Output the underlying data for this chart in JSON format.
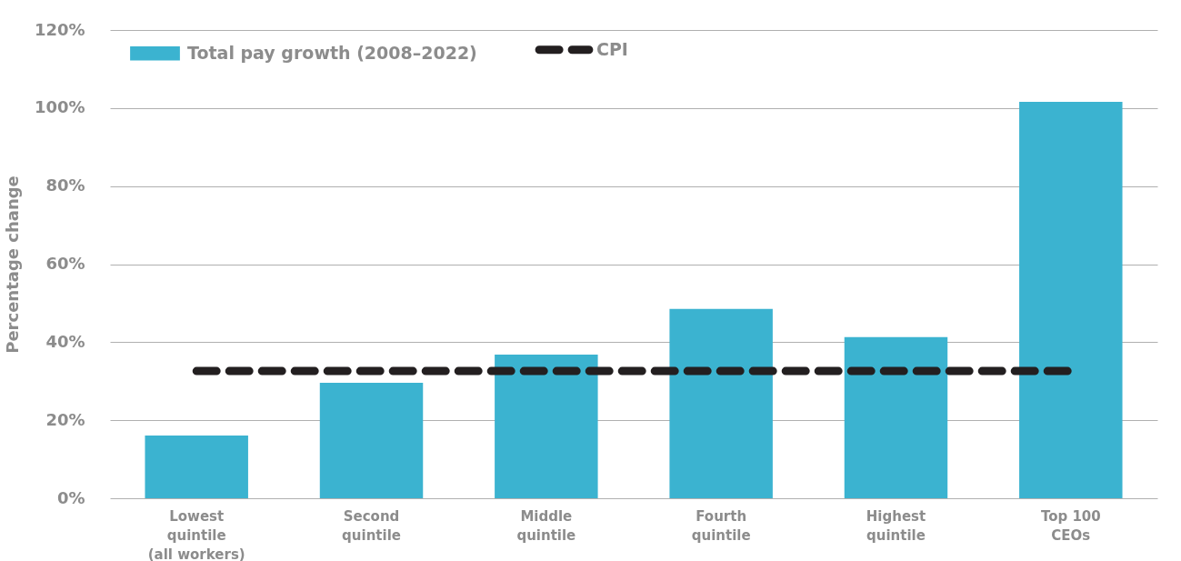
{
  "chart_data": {
    "type": "bar",
    "ylabel": "Percentage change",
    "categories": [
      "Lowest\nquintile\n(all workers)",
      "Second\nquintile",
      "Middle\nquintile",
      "Fourth\nquintile",
      "Highest\nquintile",
      "Top 100\nCEOs"
    ],
    "series": [
      {
        "name": "Total pay growth (2008–2022)",
        "color": "#3bb3d0",
        "values": [
          16.1,
          29.6,
          36.8,
          48.5,
          41.3,
          101.6
        ]
      },
      {
        "name": "CPI",
        "type": "line",
        "color": "#231f20",
        "line_style": "dashed",
        "values": [
          32.6,
          32.6,
          32.6,
          32.6,
          32.6,
          32.6
        ]
      }
    ],
    "ylim": [
      0,
      120
    ],
    "yticks": [
      {
        "value": 0,
        "label": "0%"
      },
      {
        "value": 20,
        "label": "20%"
      },
      {
        "value": 40,
        "label": "40%"
      },
      {
        "value": 60,
        "label": "60%"
      },
      {
        "value": 80,
        "label": "80%"
      },
      {
        "value": 100,
        "label": "100%"
      },
      {
        "value": 120,
        "label": "120%"
      }
    ],
    "grid": "y",
    "legend": "top left"
  }
}
